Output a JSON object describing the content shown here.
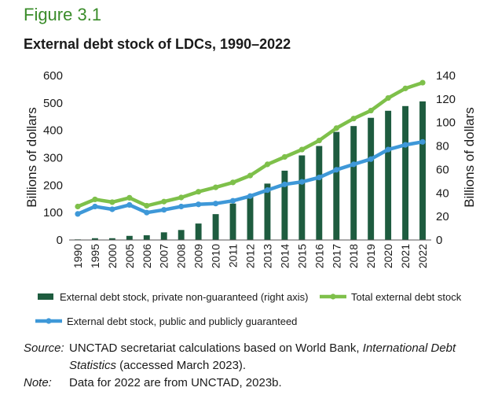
{
  "figure": {
    "label": "Figure 3.1",
    "title": "External debt stock of LDCs, 1990–2022"
  },
  "chart_data": {
    "type": "bar+line",
    "title": "External debt stock of LDCs, 1990–2022",
    "categories": [
      "1990",
      "1995",
      "2000",
      "2005",
      "2006",
      "2007",
      "2008",
      "2009",
      "2010",
      "2011",
      "2012",
      "2013",
      "2014",
      "2015",
      "2016",
      "2017",
      "2018",
      "2019",
      "2020",
      "2021",
      "2022"
    ],
    "left_axis": {
      "label": "Billions of dollars",
      "ylim": [
        0,
        600
      ],
      "ticks": [
        0,
        100,
        200,
        300,
        400,
        500,
        600
      ]
    },
    "right_axis": {
      "label": "Billions of dollars",
      "ylim": [
        0,
        140
      ],
      "ticks": [
        0,
        20,
        40,
        60,
        80,
        100,
        120,
        140
      ]
    },
    "series": [
      {
        "name": "External debt stock, private non-guaranteed (right axis)",
        "type": "bar",
        "axis": "right",
        "color": "#1e5c3f",
        "values": [
          0.5,
          1.5,
          1.5,
          3.5,
          4,
          6.5,
          8.5,
          14,
          22,
          31,
          37,
          48,
          59,
          72,
          80,
          92,
          97,
          104,
          110,
          114,
          118
        ]
      },
      {
        "name": "Total external debt stock",
        "type": "line",
        "axis": "left",
        "color": "#7ec04a",
        "values": [
          122,
          148,
          138,
          154,
          125,
          140,
          155,
          176,
          192,
          210,
          235,
          276,
          303,
          330,
          363,
          408,
          443,
          472,
          518,
          553,
          574
        ]
      },
      {
        "name": "External debt stock, public and publicly guaranteed",
        "type": "line",
        "axis": "left",
        "color": "#3e98d8",
        "values": [
          95,
          122,
          112,
          128,
          100,
          110,
          122,
          130,
          133,
          143,
          160,
          182,
          203,
          212,
          228,
          256,
          276,
          295,
          330,
          347,
          358
        ]
      }
    ],
    "legend_position": "bottom",
    "grid": false
  },
  "notes": {
    "source_key": "Source:",
    "source_text_1": "UNCTAD secretariat calculations based on World Bank, ",
    "source_italic": "International Debt Statistics",
    "source_text_2": " (accessed March 2023).",
    "note_key": "Note:",
    "note_text": "Data for 2022 are from UNCTAD, 2023b."
  }
}
